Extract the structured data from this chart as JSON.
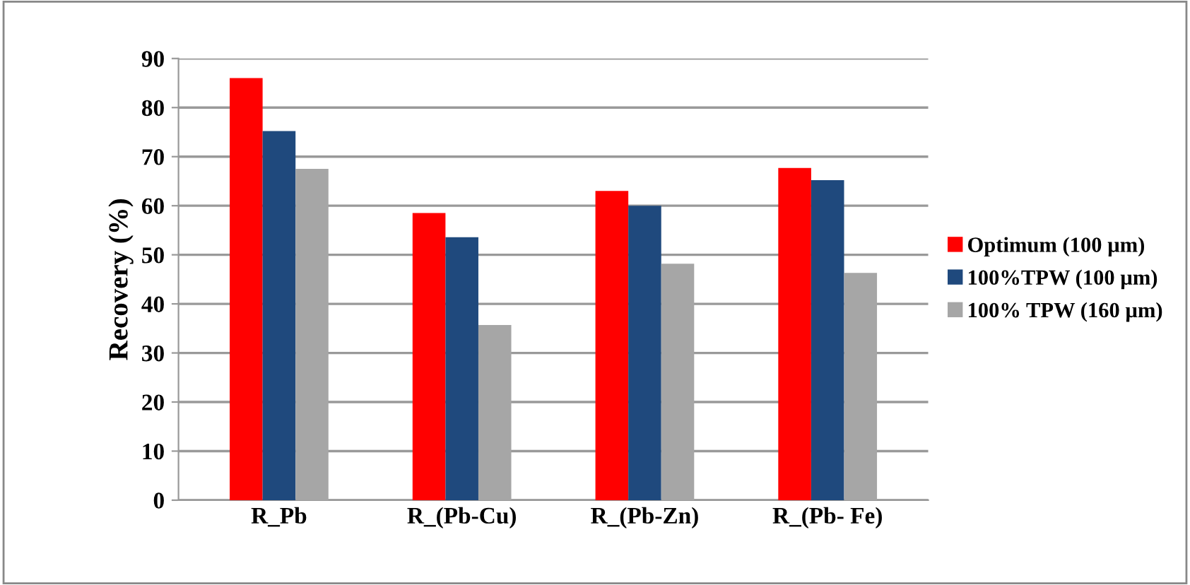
{
  "chart_data": {
    "type": "bar",
    "ylabel": "Recovery (%)",
    "categories": [
      "R_Pb",
      "R_(Pb-Cu)",
      "R_(Pb-Zn)",
      "R_(Pb- Fe)"
    ],
    "series": [
      {
        "name": "Optimum (100 µm)",
        "color": "#ff0000",
        "values": [
          86,
          58.5,
          63,
          67.7
        ]
      },
      {
        "name": "100%TPW (100 µm)",
        "color": "#1f497d",
        "values": [
          75.2,
          53.6,
          60,
          65.2
        ]
      },
      {
        "name": "100% TPW (160 µm)",
        "color": "#a6a6a6",
        "values": [
          67.5,
          35.7,
          48.2,
          46.3
        ]
      }
    ],
    "ylim": [
      0,
      90
    ],
    "yticks": [
      0,
      10,
      20,
      30,
      40,
      50,
      60,
      70,
      80,
      90
    ],
    "grid": "y",
    "legend": "right"
  }
}
